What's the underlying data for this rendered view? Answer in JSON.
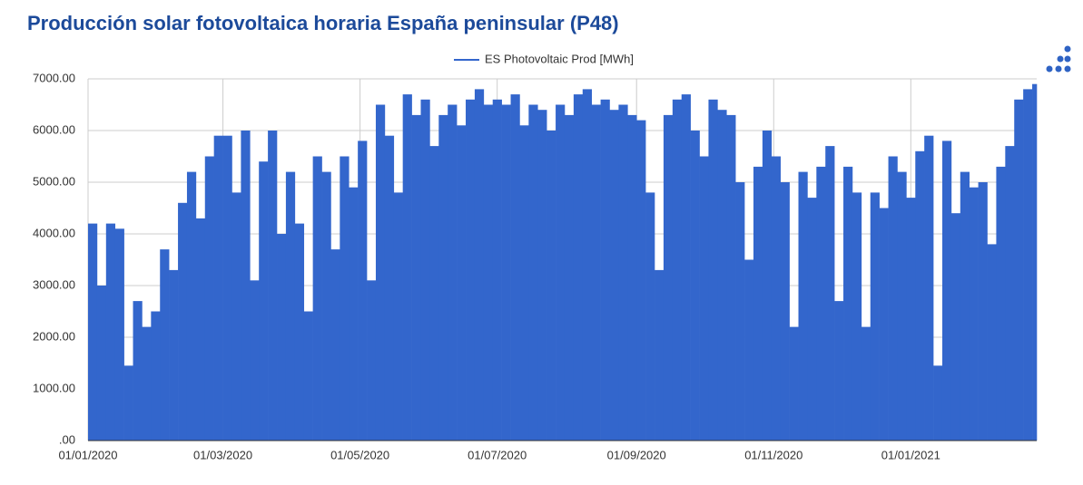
{
  "chart_data": {
    "type": "area",
    "title": "Producción solar fotovoltaica horaria España peninsular (P48)",
    "x": [
      "01/01/2020",
      "05/01/2020",
      "09/01/2020",
      "13/01/2020",
      "17/01/2020",
      "21/01/2020",
      "25/01/2020",
      "29/01/2020",
      "02/02/2020",
      "06/02/2020",
      "10/02/2020",
      "14/02/2020",
      "18/02/2020",
      "22/02/2020",
      "26/02/2020",
      "01/03/2020",
      "05/03/2020",
      "09/03/2020",
      "13/03/2020",
      "17/03/2020",
      "21/03/2020",
      "25/03/2020",
      "29/03/2020",
      "02/04/2020",
      "06/04/2020",
      "10/04/2020",
      "14/04/2020",
      "18/04/2020",
      "22/04/2020",
      "26/04/2020",
      "30/04/2020",
      "04/05/2020",
      "08/05/2020",
      "12/05/2020",
      "16/05/2020",
      "20/05/2020",
      "24/05/2020",
      "28/05/2020",
      "01/06/2020",
      "05/06/2020",
      "09/06/2020",
      "13/06/2020",
      "17/06/2020",
      "21/06/2020",
      "25/06/2020",
      "29/06/2020",
      "03/07/2020",
      "07/07/2020",
      "11/07/2020",
      "15/07/2020",
      "19/07/2020",
      "23/07/2020",
      "27/07/2020",
      "31/07/2020",
      "04/08/2020",
      "08/08/2020",
      "12/08/2020",
      "16/08/2020",
      "20/08/2020",
      "24/08/2020",
      "28/08/2020",
      "01/09/2020",
      "05/09/2020",
      "09/09/2020",
      "13/09/2020",
      "17/09/2020",
      "21/09/2020",
      "25/09/2020",
      "29/09/2020",
      "03/10/2020",
      "07/10/2020",
      "11/10/2020",
      "15/10/2020",
      "19/10/2020",
      "23/10/2020",
      "27/10/2020",
      "31/10/2020",
      "04/11/2020",
      "08/11/2020",
      "12/11/2020",
      "16/11/2020",
      "20/11/2020",
      "24/11/2020",
      "28/11/2020",
      "02/12/2020",
      "06/12/2020",
      "10/12/2020",
      "14/12/2020",
      "18/12/2020",
      "22/12/2020",
      "26/12/2020",
      "30/12/2020",
      "03/01/2021",
      "07/01/2021",
      "11/01/2021",
      "15/01/2021",
      "19/01/2021",
      "23/01/2021",
      "27/01/2021",
      "31/01/2021",
      "04/02/2021",
      "08/02/2021",
      "12/02/2021",
      "16/02/2021",
      "20/02/2021",
      "24/02/2021"
    ],
    "series": [
      {
        "name": "ES Photovoltaic Prod [MWh]",
        "color": "#3366cc",
        "values": [
          4200,
          3000,
          4200,
          4100,
          1450,
          2700,
          2200,
          2500,
          3700,
          3300,
          4600,
          5200,
          4300,
          5500,
          5900,
          5900,
          4800,
          6000,
          3100,
          5400,
          6000,
          4000,
          5200,
          4200,
          2500,
          5500,
          5200,
          3700,
          5500,
          4900,
          5800,
          3100,
          6500,
          5900,
          4800,
          6700,
          6300,
          6600,
          5700,
          6300,
          6500,
          6100,
          6600,
          6800,
          6500,
          6600,
          6500,
          6700,
          6100,
          6500,
          6400,
          6000,
          6500,
          6300,
          6700,
          6800,
          6500,
          6600,
          6400,
          6500,
          6300,
          6200,
          4800,
          3300,
          6300,
          6600,
          6700,
          6000,
          5500,
          6600,
          6400,
          6300,
          5000,
          3500,
          5300,
          6000,
          5500,
          5000,
          2200,
          5200,
          4700,
          5300,
          5700,
          2700,
          5300,
          4800,
          2200,
          4800,
          4500,
          5500,
          5200,
          4700,
          5600,
          5900,
          1450,
          5800,
          4400,
          5200,
          4900,
          5000,
          3800,
          5300,
          5700,
          6600,
          6800,
          6900
        ]
      }
    ],
    "xlim": [
      "01/01/2020",
      "26/02/2021"
    ],
    "xticks": [
      "01/01/2020",
      "01/03/2020",
      "01/05/2020",
      "01/07/2020",
      "01/09/2020",
      "01/11/2020",
      "01/01/2021"
    ],
    "ylim": [
      0,
      7000
    ],
    "yticks": [
      {
        "value": 0,
        "label": ".00"
      },
      {
        "value": 1000,
        "label": "1000.00"
      },
      {
        "value": 2000,
        "label": "2000.00"
      },
      {
        "value": 3000,
        "label": "3000.00"
      },
      {
        "value": 4000,
        "label": "4000.00"
      },
      {
        "value": 5000,
        "label": "5000.00"
      },
      {
        "value": 6000,
        "label": "6000.00"
      },
      {
        "value": 7000,
        "label": "7000.00"
      }
    ],
    "grid": true,
    "legend": "top"
  }
}
